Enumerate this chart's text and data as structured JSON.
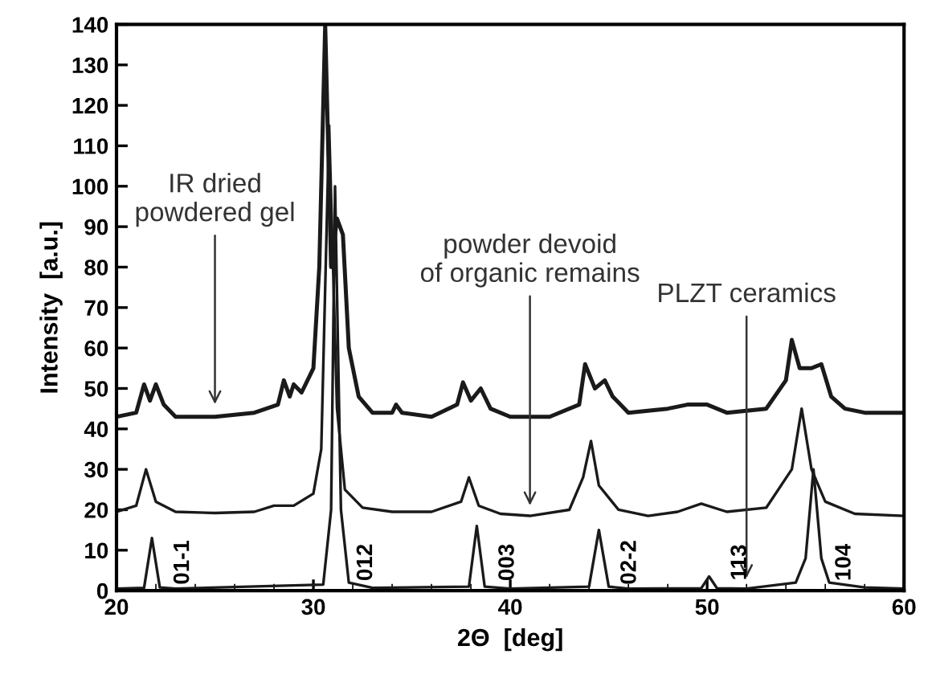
{
  "chart_data": {
    "type": "line",
    "xlabel": "2Θ  [deg]",
    "ylabel": "Intensity  [a.u.]",
    "xlim": [
      20,
      60
    ],
    "xticks": [
      20,
      30,
      40,
      50,
      60
    ],
    "ylim": [
      0,
      140
    ],
    "yticks": [
      0,
      10,
      20,
      30,
      40,
      50,
      60,
      70,
      80,
      90,
      100,
      110,
      120,
      130,
      140
    ],
    "grid": false,
    "legend": false,
    "marker": "none",
    "line_style": "solid",
    "series": [
      {
        "color": "#1a1a1a",
        "x": [
          20,
          21,
          21.4,
          21.7,
          22,
          22.4,
          23,
          25,
          27,
          28.2,
          28.5,
          28.8,
          29,
          29.4,
          30,
          30.3,
          30.6,
          30.9,
          31.2,
          31.5,
          31.8,
          32.3,
          33,
          34,
          34.2,
          34.5,
          36,
          37.3,
          37.6,
          38,
          38.5,
          39,
          40,
          42,
          43.5,
          43.8,
          44.3,
          44.8,
          45.2,
          46,
          48,
          49,
          50,
          51,
          53,
          54,
          54.3,
          54.7,
          55.3,
          55.8,
          56.3,
          57,
          58,
          60
        ],
        "values": [
          43,
          44,
          51,
          47,
          51,
          46,
          43,
          43,
          44,
          46,
          52,
          48,
          51,
          49,
          55,
          80,
          140,
          80,
          92,
          88,
          60,
          48,
          44,
          44,
          46,
          44,
          43,
          46,
          51.5,
          47,
          50,
          45,
          43,
          43,
          46,
          56,
          50,
          52,
          48,
          44,
          45,
          46,
          46,
          44,
          45,
          52,
          62,
          55,
          55,
          56,
          48,
          45,
          44,
          44
        ]
      },
      {
        "color": "#1a1a1a",
        "x": [
          20,
          21,
          21.5,
          22,
          23,
          25,
          27,
          28,
          29,
          30,
          30.4,
          30.8,
          31.2,
          31.6,
          32.5,
          34,
          36,
          37.5,
          37.9,
          38.4,
          39.5,
          41,
          43,
          43.7,
          44.1,
          44.5,
          45.5,
          47,
          48.5,
          49.7,
          51,
          53,
          54.3,
          54.8,
          55.3,
          56,
          57.5,
          60
        ],
        "values": [
          19.5,
          21,
          30,
          22,
          19.5,
          19.2,
          19.5,
          21,
          21,
          24,
          35,
          115,
          45,
          25,
          20.5,
          19.5,
          19.5,
          22,
          28,
          21,
          19,
          18.5,
          20,
          28,
          37,
          26,
          20,
          18.5,
          19.5,
          21.5,
          19.5,
          20.5,
          30,
          45,
          30,
          22,
          19,
          18.5
        ]
      },
      {
        "color": "#1a1a1a",
        "x": [
          20,
          21.4,
          21.8,
          22.2,
          23,
          30.5,
          30.9,
          31.1,
          31.4,
          31.8,
          33,
          37.9,
          38.3,
          38.7,
          40,
          44.0,
          44.5,
          45.0,
          46,
          49.7,
          50.1,
          50.5,
          52,
          54.5,
          55.0,
          55.4,
          55.8,
          56.2,
          58,
          60
        ],
        "values": [
          0.5,
          0.7,
          13,
          0.8,
          0.5,
          1.5,
          20,
          100,
          20,
          2,
          0.7,
          1,
          16,
          1,
          0.5,
          1,
          15,
          1,
          0.5,
          0.6,
          3.5,
          0.6,
          0.5,
          2,
          8,
          30,
          8,
          2,
          0.8,
          0.5
        ]
      }
    ],
    "annotations": [
      {
        "text": "IR dried\npowdered gel",
        "x": 25,
        "y": 45
      },
      {
        "text": "powder devoid\nof organic remains",
        "x": 41,
        "y": 20
      },
      {
        "text": "PLZT ceramics",
        "x": 52,
        "y": 2
      },
      "01-1",
      "012",
      "003",
      "02-2",
      "113",
      "104"
    ]
  }
}
